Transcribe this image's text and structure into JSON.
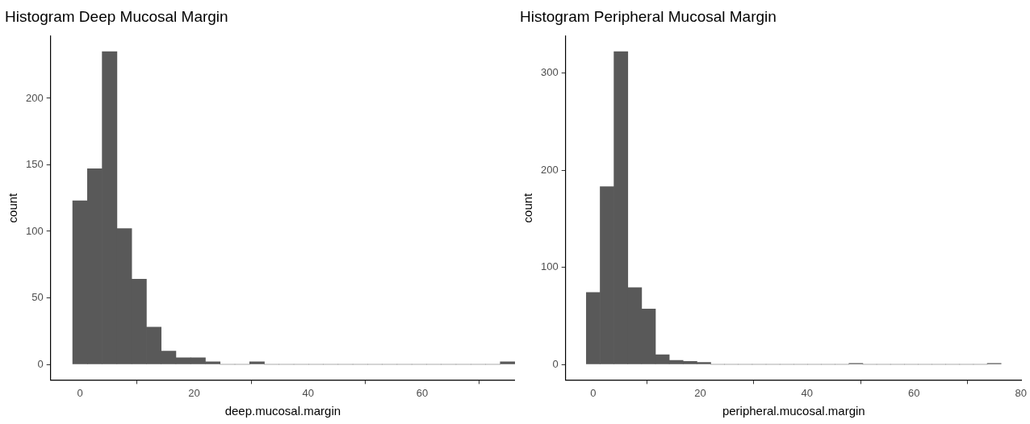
{
  "chart_data": [
    {
      "type": "histogram",
      "title": "Histogram Deep Mucosal Margin",
      "xlabel": "deep.mucosal.margin",
      "ylabel": "count",
      "color": "#595959",
      "bins": [
        -1.29,
        1.29,
        3.88,
        6.47,
        9.05,
        11.64,
        14.22,
        16.81,
        19.4,
        21.98,
        24.57,
        27.16,
        29.74,
        32.33,
        34.91,
        37.5,
        40.09,
        42.67,
        45.26,
        47.84,
        50.43,
        53.02,
        55.6,
        58.19,
        60.78,
        63.36,
        65.95,
        68.53,
        71.12,
        73.71,
        76.29
      ],
      "values": [
        123,
        147,
        235,
        102,
        64,
        28,
        10,
        5,
        5,
        2,
        0,
        0,
        2,
        0,
        0,
        0,
        0,
        0,
        0,
        0,
        0,
        0,
        0,
        0,
        0,
        0,
        0,
        0,
        0,
        2
      ],
      "xlim": [
        -5.17,
        76.29
      ],
      "xticks": [
        0,
        20,
        40,
        60
      ],
      "ylim": [
        -11.75,
        246.75
      ],
      "yticks": [
        0,
        50,
        100,
        150,
        200
      ],
      "grid": false,
      "legend": false
    },
    {
      "type": "histogram",
      "title": "Histogram Peripheral Mucosal Margin",
      "xlabel": "peripheral.mucosal.margin",
      "ylabel": "count",
      "color": "#595959",
      "bins": [
        -1.29,
        1.29,
        3.88,
        6.47,
        9.05,
        11.64,
        14.22,
        16.81,
        19.4,
        21.98,
        24.57,
        27.16,
        29.74,
        32.33,
        34.91,
        37.5,
        40.09,
        42.67,
        45.26,
        47.84,
        50.43,
        53.02,
        55.6,
        58.19,
        60.78,
        63.36,
        65.95,
        68.53,
        71.12,
        73.71,
        76.29
      ],
      "values": [
        74,
        183,
        322,
        79,
        57,
        10,
        4,
        3,
        2,
        0,
        0,
        0,
        0,
        0,
        0,
        0,
        0,
        0,
        0,
        1,
        0,
        0,
        0,
        0,
        0,
        0,
        0,
        0,
        0,
        1
      ],
      "xlim": [
        -5.17,
        80.17
      ],
      "xticks": [
        0,
        20,
        40,
        60,
        80
      ],
      "ylim": [
        -16.1,
        338.1
      ],
      "yticks": [
        0,
        100,
        200,
        300
      ],
      "grid": false,
      "legend": false
    }
  ]
}
